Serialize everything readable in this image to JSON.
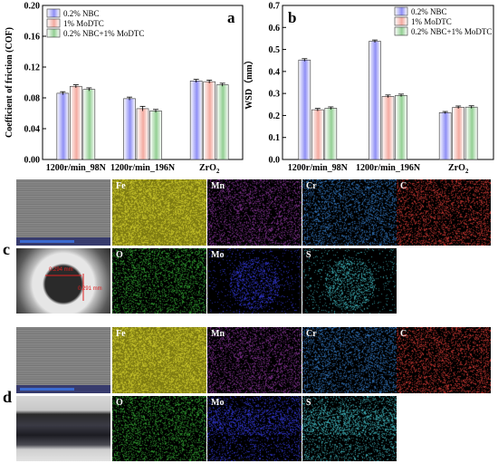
{
  "figure": {
    "panel_a_letter": "a",
    "panel_b_letter": "b",
    "panel_c_letter": "c",
    "panel_d_letter": "d"
  },
  "chart_data": [
    {
      "type": "bar",
      "panel": "a",
      "ylabel": "Coefficient of friction (COF)",
      "ylim": [
        0,
        0.2
      ],
      "yticks": [
        "0.00",
        "0.04",
        "0.08",
        "0.12",
        "0.16",
        "0.20"
      ],
      "categories": [
        "1200r/min_98N",
        "1200r/min_196N",
        "ZrO2"
      ],
      "series": [
        {
          "name": "0.2% NBC",
          "values": [
            0.086,
            0.079,
            0.102
          ],
          "errors": [
            0.002,
            0.002,
            0.002
          ],
          "color": "#8f8ff5"
        },
        {
          "name": "1% MoDTC",
          "values": [
            0.095,
            0.066,
            0.101
          ],
          "errors": [
            0.002,
            0.003,
            0.002
          ],
          "color": "#f3aaa0"
        },
        {
          "name": "0.2% NBC+1% MoDTC",
          "values": [
            0.091,
            0.063,
            0.097
          ],
          "errors": [
            0.002,
            0.002,
            0.002
          ],
          "color": "#93cf93"
        }
      ],
      "legend": "top-left",
      "grid": false
    },
    {
      "type": "bar",
      "panel": "b",
      "ylabel": "WSD（mm）",
      "ylim": [
        0,
        0.7
      ],
      "yticks": [
        "0.0",
        "0.1",
        "0.2",
        "0.3",
        "0.4",
        "0.5",
        "0.6",
        "0.7"
      ],
      "categories": [
        "1200r/min_98N",
        "1200r/min_196N",
        "ZrO2"
      ],
      "series": [
        {
          "name": "0.2% NBC",
          "values": [
            0.452,
            0.537,
            0.213
          ],
          "errors": [
            0.006,
            0.006,
            0.005
          ],
          "color": "#8f8ff5"
        },
        {
          "name": "1% MoDTC",
          "values": [
            0.226,
            0.287,
            0.237
          ],
          "errors": [
            0.006,
            0.006,
            0.006
          ],
          "color": "#f3aaa0"
        },
        {
          "name": "0.2% NBC+1% MoDTC",
          "values": [
            0.233,
            0.291,
            0.238
          ],
          "errors": [
            0.006,
            0.006,
            0.006
          ],
          "color": "#93cf93"
        }
      ],
      "legend": "top-right",
      "grid": false
    }
  ],
  "edx_c": {
    "elements_row1": [
      "Fe",
      "Mn",
      "Cr",
      "C"
    ],
    "elements_row2": [
      "O",
      "Mo",
      "S"
    ],
    "scar_width_label": "0.294 mm",
    "scar_height_label": "0.291 mm"
  },
  "edx_d": {
    "elements_row1": [
      "Fe",
      "Mn",
      "Cr",
      "C"
    ],
    "elements_row2": [
      "O",
      "Mo",
      "S"
    ]
  },
  "element_colors": {
    "Fe": "#c9c62b",
    "Mn": "#7a2f8a",
    "Cr": "#2f6fb4",
    "C": "#c0342f",
    "O": "#2f9a2f",
    "Mo": "#2f34c8",
    "S": "#3aa8b0"
  }
}
